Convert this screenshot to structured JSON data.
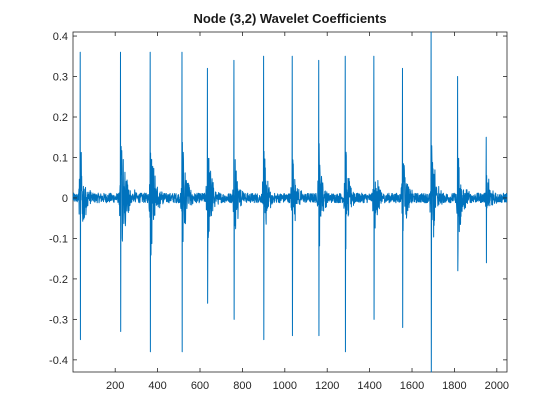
{
  "chart_data": {
    "type": "line",
    "title": "Node (3,2) Wavelet Coefficients",
    "xlabel": "",
    "ylabel": "",
    "xlim": [
      1,
      2048
    ],
    "ylim": [
      -0.43,
      0.41
    ],
    "xticks": [
      200,
      400,
      600,
      800,
      1000,
      1200,
      1400,
      1600,
      1800,
      2000
    ],
    "xtick_labels": [
      "200",
      "400",
      "600",
      "800",
      "1000",
      "1200",
      "1400",
      "1600",
      "1800",
      "2000"
    ],
    "yticks": [
      0.4,
      0.3,
      0.2,
      0.1,
      0,
      -0.1,
      -0.2,
      -0.3,
      -0.4
    ],
    "ytick_labels": [
      "0.4",
      "0.3",
      "0.2",
      "0.1",
      "0",
      "-0.1",
      "-0.2",
      "-0.3",
      "-0.4"
    ],
    "grid": false,
    "legend": "none",
    "series_color": "#0072BD",
    "baseline_noise_amplitude": 0.012,
    "bursts": [
      {
        "x": 35,
        "peak": 0.36,
        "trough": -0.35,
        "width": 55
      },
      {
        "x": 225,
        "peak": 0.36,
        "trough": -0.33,
        "width": 75
      },
      {
        "x": 365,
        "peak": 0.36,
        "trough": -0.38,
        "width": 65
      },
      {
        "x": 515,
        "peak": 0.36,
        "trough": -0.38,
        "width": 55
      },
      {
        "x": 635,
        "peak": 0.32,
        "trough": -0.26,
        "width": 60
      },
      {
        "x": 760,
        "peak": 0.34,
        "trough": -0.3,
        "width": 50
      },
      {
        "x": 900,
        "peak": 0.35,
        "trough": -0.35,
        "width": 45
      },
      {
        "x": 1035,
        "peak": 0.35,
        "trough": -0.34,
        "width": 45
      },
      {
        "x": 1160,
        "peak": 0.34,
        "trough": -0.34,
        "width": 45
      },
      {
        "x": 1285,
        "peak": 0.35,
        "trough": -0.38,
        "width": 45
      },
      {
        "x": 1420,
        "peak": 0.35,
        "trough": -0.3,
        "width": 45
      },
      {
        "x": 1555,
        "peak": 0.32,
        "trough": -0.32,
        "width": 50
      },
      {
        "x": 1690,
        "peak": 0.41,
        "trough": -0.43,
        "width": 55
      },
      {
        "x": 1815,
        "peak": 0.3,
        "trough": -0.18,
        "width": 55
      },
      {
        "x": 1950,
        "peak": 0.15,
        "trough": -0.16,
        "width": 55
      }
    ]
  }
}
